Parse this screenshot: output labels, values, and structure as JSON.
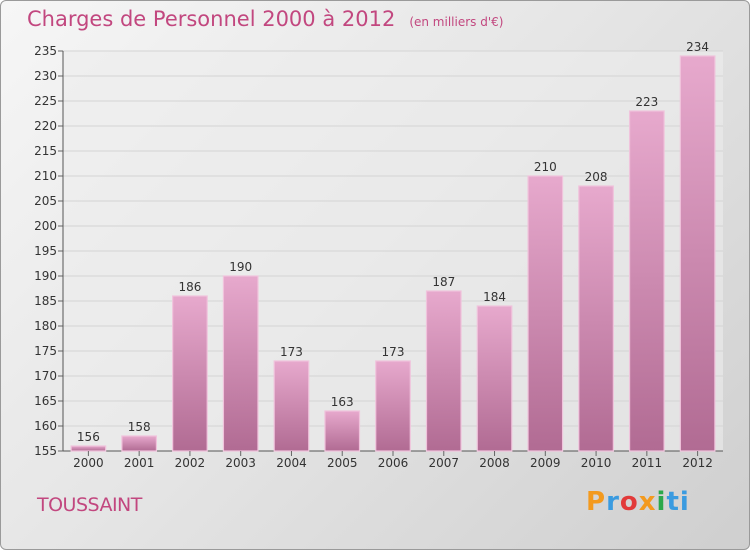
{
  "header": {
    "title": "Charges de Personnel 2000 à 2012",
    "subtitle": "(en milliers d'€)"
  },
  "footer": {
    "commune": "TOUSSAINT",
    "logo_letters": [
      "P",
      "r",
      "o",
      "x",
      "i",
      "ti"
    ]
  },
  "colors": {
    "title": "#c2477f",
    "bar_top": "#e7a9cd",
    "bar_bottom": "#b16b93",
    "bar_stroke": "#f0c3dc",
    "grid": "#d4d4d4"
  },
  "chart_data": {
    "type": "bar",
    "title": "Charges de Personnel 2000 à 2012",
    "subtitle": "(en milliers d'€)",
    "categories": [
      "2000",
      "2001",
      "2002",
      "2003",
      "2004",
      "2005",
      "2006",
      "2007",
      "2008",
      "2009",
      "2010",
      "2011",
      "2012"
    ],
    "values": [
      156,
      158,
      186,
      190,
      173,
      163,
      173,
      187,
      184,
      210,
      208,
      223,
      234
    ],
    "data_labels": [
      "156",
      "158",
      "186",
      "190",
      "173",
      "163",
      "173",
      "187",
      "184",
      "210",
      "208",
      "223",
      "234"
    ],
    "ylim": [
      155,
      235
    ],
    "yticks": [
      155,
      160,
      165,
      170,
      175,
      180,
      185,
      190,
      195,
      200,
      205,
      210,
      215,
      220,
      225,
      230,
      235
    ],
    "grid": true,
    "xlabel": "",
    "ylabel": ""
  }
}
